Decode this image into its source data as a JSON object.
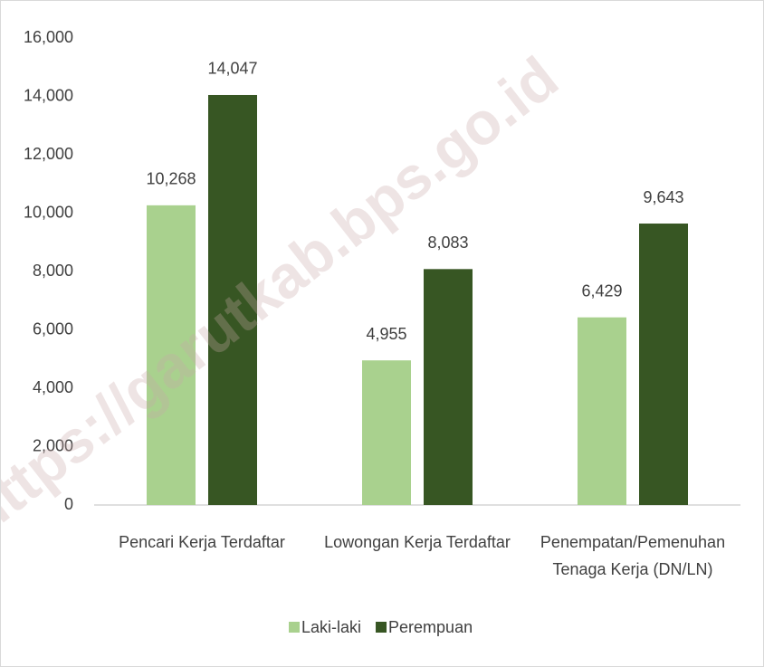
{
  "chart_data": {
    "type": "bar",
    "categories": [
      "Pencari Kerja Terdaftar",
      "Lowongan Kerja Terdaftar",
      "Penempatan/Pemenuhan Tenaga Kerja (DN/LN)"
    ],
    "series": [
      {
        "name": "Laki-laki",
        "color": "#a9d18e",
        "values": [
          10268,
          4955,
          6429
        ],
        "value_labels": [
          "10,268",
          "4,955",
          "6,429"
        ]
      },
      {
        "name": "Perempuan",
        "color": "#375623",
        "values": [
          14047,
          8083,
          9643
        ],
        "value_labels": [
          "14,047",
          "8,083",
          "9,643"
        ]
      }
    ],
    "ylim": [
      0,
      16000
    ],
    "yticks": [
      0,
      {
        "value": 2000,
        "label": "2,000"
      },
      {
        "value": 4000,
        "label": "4,000"
      },
      {
        "value": 6000,
        "label": "6,000"
      },
      {
        "value": 8000,
        "label": "8,000"
      },
      {
        "value": 10000,
        "label": "10,000"
      },
      {
        "value": 12000,
        "label": "12,000"
      },
      {
        "value": 14000,
        "label": "14,000"
      },
      {
        "value": 16000,
        "label": "16,000"
      }
    ],
    "grid": false,
    "legend": "bottom",
    "watermark": "https://garutkab.bps.go.id"
  }
}
